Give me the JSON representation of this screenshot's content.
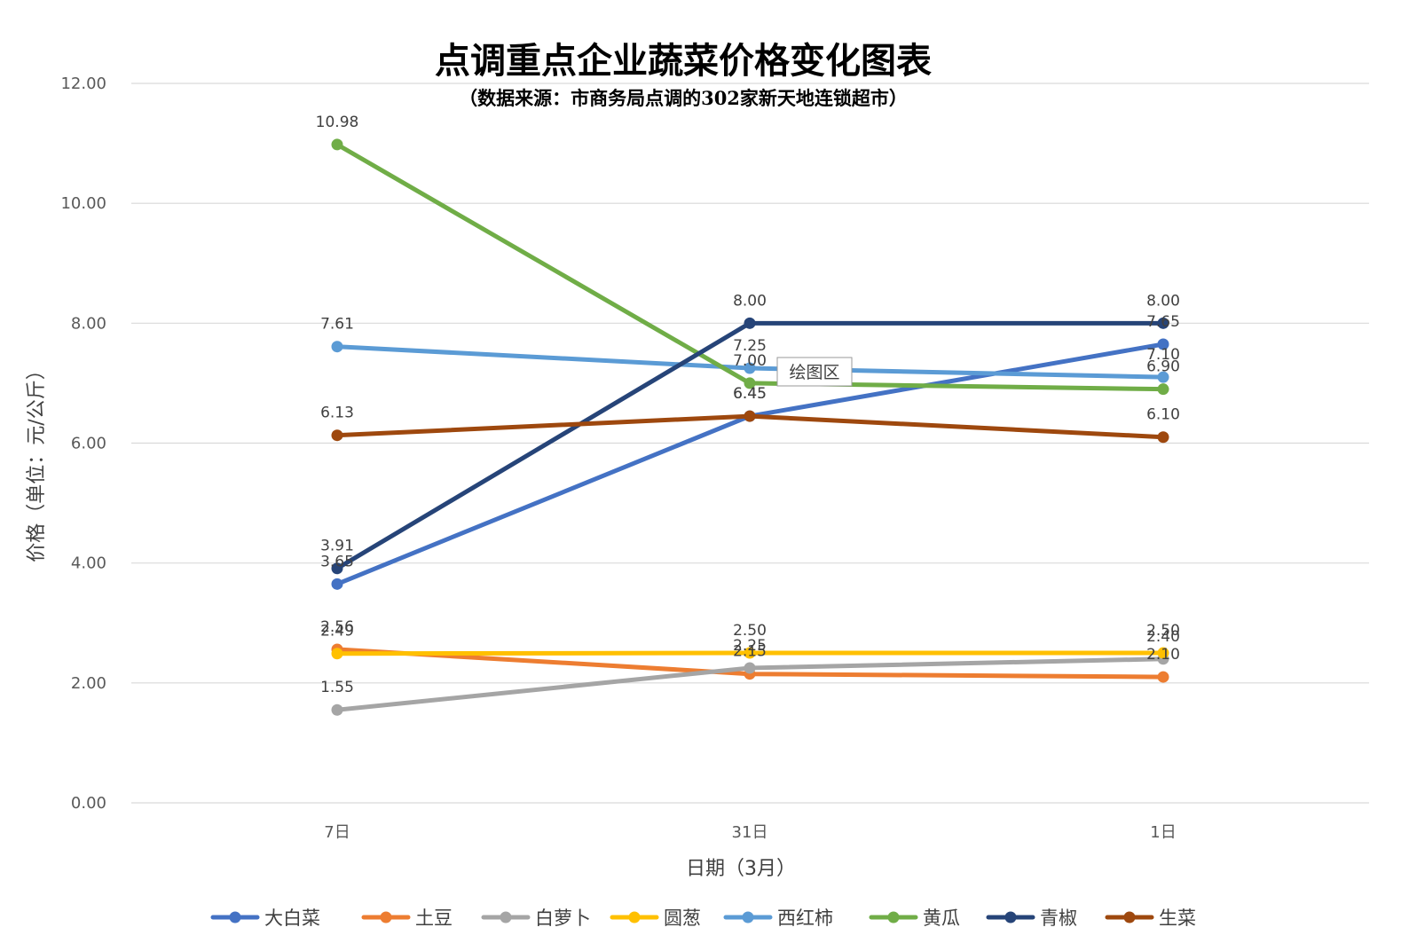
{
  "chart_data": {
    "type": "line",
    "title": "点调重点企业蔬菜价格变化图表",
    "subtitle": "（数据来源：市商务局点调的302家新天地连锁超市）",
    "xlabel": "日期（3月）",
    "ylabel": "价格（单位：元/公斤）",
    "categories": [
      "7日",
      "31日",
      "1日"
    ],
    "ylim": [
      0,
      12
    ],
    "yticks": [
      "0.00",
      "2.00",
      "4.00",
      "6.00",
      "8.00",
      "10.00",
      "12.00"
    ],
    "grid": true,
    "legend_position": "bottom",
    "series": [
      {
        "name": "大白菜",
        "color": "#4472C4",
        "values": [
          3.65,
          6.45,
          7.65
        ]
      },
      {
        "name": "土豆",
        "color": "#ED7D31",
        "values": [
          2.56,
          2.15,
          2.1
        ]
      },
      {
        "name": "白萝卜",
        "color": "#A5A5A5",
        "values": [
          1.55,
          2.25,
          2.4
        ]
      },
      {
        "name": "圆葱",
        "color": "#FFC000",
        "values": [
          2.49,
          2.5,
          2.5
        ]
      },
      {
        "name": "西红柿",
        "color": "#5B9BD5",
        "values": [
          7.61,
          7.25,
          7.1
        ]
      },
      {
        "name": "黄瓜",
        "color": "#70AD47",
        "values": [
          10.98,
          7.0,
          6.9
        ]
      },
      {
        "name": "青椒",
        "color": "#264478",
        "values": [
          3.91,
          8.0,
          8.0
        ]
      },
      {
        "name": "生菜",
        "color": "#9E480E",
        "values": [
          6.13,
          6.45,
          6.1
        ]
      }
    ],
    "tooltip": "绘图区"
  }
}
